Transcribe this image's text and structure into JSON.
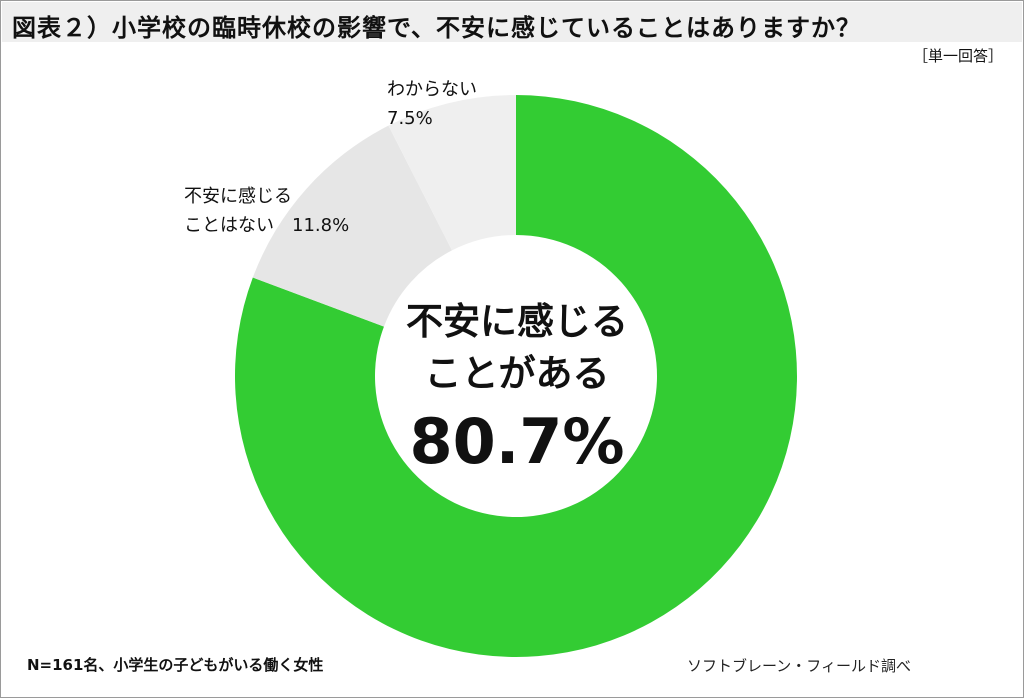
{
  "header": {
    "title": "図表２）小学校の臨時休校の影響で、不安に感じていることはありますか？",
    "answer_type": "［単一回答］"
  },
  "chart_data": {
    "type": "pie",
    "title": "図表２）小学校の臨時休校の影響で、不安に感じていることはありますか？",
    "unit": "%",
    "slices": [
      {
        "label": "不安に感じることがある",
        "label_lines": [
          "不安に感じる",
          "ことがある"
        ],
        "value": 80.7,
        "value_text": "80.7%",
        "color": "#33cc33"
      },
      {
        "label": "不安に感じることはない",
        "label_lines": [
          "不安に感じる",
          "ことはない　11.8%"
        ],
        "value": 11.8,
        "value_text": "11.8%",
        "color": "#e6e6e6"
      },
      {
        "label": "わからない",
        "label_lines": [
          "わからない",
          "7.5%"
        ],
        "value": 7.5,
        "value_text": "7.5%",
        "color": "#efefef"
      }
    ]
  },
  "footer": {
    "note": "N=161名、小学生の子どもがいる働く女性",
    "source": "ソフトブレーン・フィールド調べ"
  }
}
